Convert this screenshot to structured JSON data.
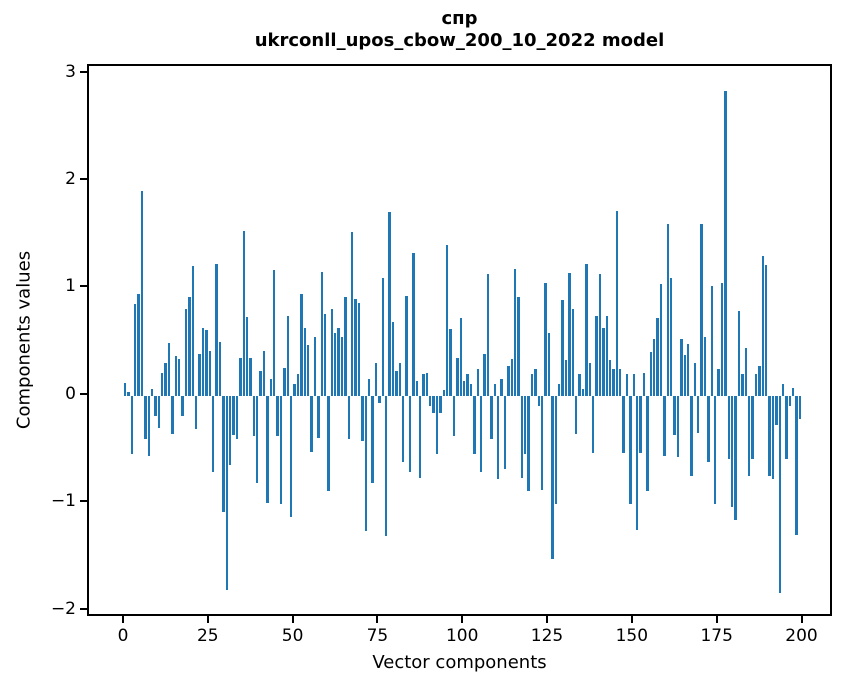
{
  "figure": {
    "title_line1": "спр",
    "title_line2": "ukrconll_upos_cbow_200_10_2022 model",
    "xlabel": "Vector components",
    "ylabel": "Components values",
    "background_color": "#ffffff",
    "axis_color": "#000000"
  },
  "chart_data": {
    "type": "bar",
    "title": "спр",
    "subtitle": "ukrconll_upos_cbow_200_10_2022 model",
    "xlabel": "Vector components",
    "ylabel": "Components values",
    "bar_color": "#1f77b4",
    "grid": false,
    "legend": null,
    "x_tick_values": [
      0,
      25,
      50,
      75,
      100,
      125,
      150,
      175,
      200
    ],
    "y_tick_values": [
      3,
      2,
      1,
      0,
      -1,
      -2
    ],
    "xlim": [
      -10.6,
      209.0
    ],
    "ylim": [
      -2.07,
      3.07
    ],
    "x_start_index": 0,
    "values": [
      0.12,
      0.03,
      -0.54,
      0.85,
      0.95,
      1.91,
      -0.4,
      -0.56,
      0.06,
      -0.19,
      -0.3,
      0.21,
      0.3,
      0.49,
      -0.36,
      0.37,
      0.34,
      -0.19,
      0.81,
      0.92,
      1.21,
      -0.31,
      0.39,
      0.63,
      0.61,
      0.42,
      -0.71,
      1.23,
      0.5,
      -1.08,
      -1.81,
      -0.65,
      -0.37,
      -0.4,
      0.35,
      1.53,
      0.73,
      0.35,
      -0.38,
      -0.81,
      0.23,
      0.42,
      -1.0,
      0.16,
      1.17,
      -0.38,
      -1.01,
      0.26,
      0.74,
      -1.13,
      0.11,
      0.2,
      0.95,
      0.63,
      0.47,
      -0.52,
      0.55,
      -0.39,
      1.15,
      0.76,
      -0.89,
      0.81,
      0.58,
      0.63,
      0.55,
      0.92,
      -0.4,
      1.52,
      0.9,
      0.86,
      -0.42,
      -1.26,
      0.16,
      -0.81,
      0.3,
      -0.07,
      1.1,
      -1.31,
      1.71,
      0.69,
      0.23,
      0.3,
      -0.62,
      0.93,
      -0.71,
      1.33,
      0.14,
      -0.77,
      0.2,
      0.21,
      -0.1,
      -0.16,
      -0.54,
      -0.16,
      0.05,
      1.4,
      0.62,
      -0.38,
      0.35,
      0.72,
      0.14,
      0.2,
      0.11,
      -0.54,
      0.25,
      -0.71,
      0.39,
      1.13,
      -0.4,
      0.11,
      -0.78,
      0.16,
      -0.68,
      0.28,
      0.34,
      1.18,
      0.92,
      -0.77,
      -0.54,
      -0.89,
      0.2,
      0.25,
      -0.1,
      -0.88,
      1.05,
      0.58,
      -1.52,
      -1.01,
      0.11,
      0.89,
      0.33,
      1.14,
      0.81,
      -0.36,
      0.2,
      0.06,
      1.23,
      0.3,
      -0.53,
      0.74,
      1.13,
      0.63,
      0.74,
      0.33,
      0.25,
      1.72,
      0.25,
      -0.53,
      0.2,
      -1.01,
      0.2,
      -1.25,
      -0.53,
      0.21,
      -0.89,
      0.41,
      0.53,
      0.72,
      1.04,
      -0.56,
      1.6,
      1.1,
      -0.37,
      -0.57,
      0.53,
      0.38,
      0.48,
      -0.75,
      0.3,
      -0.35,
      1.6,
      0.55,
      -0.62,
      1.02,
      -1.01,
      0.25,
      1.05,
      2.84,
      -0.59,
      -1.04,
      -1.16,
      0.79,
      0.2,
      0.44,
      -0.75,
      -0.59,
      0.2,
      0.28,
      1.3,
      1.22,
      -0.75,
      -0.78,
      -0.27,
      -1.84,
      0.11,
      -0.59,
      -0.1,
      0.07,
      -1.3,
      -0.22
    ]
  }
}
